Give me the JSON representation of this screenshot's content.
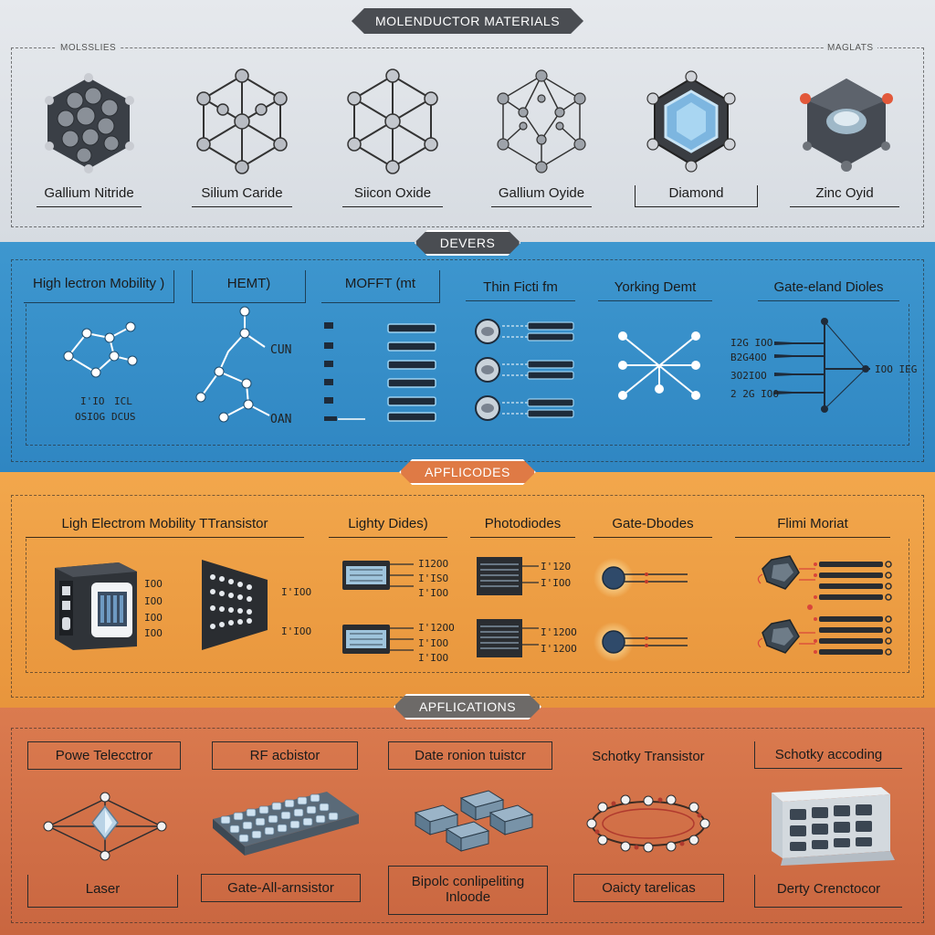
{
  "sections": {
    "materials": "MOLENDUCTOR MATERIALS",
    "devices": "DEVERS",
    "apps1": "APFLICODES",
    "apps2": "APFLICATIONS"
  },
  "materials": {
    "corner_left": "MOLSSLIES",
    "corner_right": "MAGLATS",
    "items": [
      "Gallium Nitride",
      "Silium Caride",
      "Siicon Oxide",
      "Gallium Oyide",
      "Diamond",
      "Zinc Oyid"
    ]
  },
  "devices": {
    "titles": [
      "High lectron Mobility )",
      "HEMT)",
      "MOFFT (mt",
      "Thin Ficti fm",
      "Yorking Demt",
      "Gate-eland Dioles"
    ],
    "hemt_labels": [
      "CUN",
      "OAN"
    ],
    "hemt_left_labels": [
      "I'IO",
      "ICL",
      "OSIOG",
      "DCUS"
    ],
    "diode_labels": [
      "I2G IOO",
      "B2G4OO",
      "3O2IOO",
      "2 2G IOO"
    ],
    "diode_right": "IOO IEG"
  },
  "apps1": {
    "titles": [
      "Ligh Electrom Mobility TTransistor",
      "Lighty Dides)",
      "Photodiodes",
      "Gate-Dbodes",
      "Flimi Moriat"
    ],
    "chip_labels": [
      "IOO",
      "IOO",
      "IOO",
      "IOO"
    ],
    "board_labels": [
      "I'IOO",
      "I'IOO"
    ],
    "diode_labels": [
      "I12OO",
      "I'ISO",
      "I'IOO",
      "I'12OO",
      "I'IOO",
      "I'IOO"
    ],
    "photo_labels": [
      "I'12O",
      "I'IOO",
      "I'12OO",
      "I'12OO"
    ]
  },
  "apps2": {
    "top_labels": [
      "Powe Telecctror",
      "RF acbistor",
      "Date ronion tuistcr",
      "Schotky Transistor",
      "Schotky accoding"
    ],
    "bottom_labels": [
      "Laser",
      "Gate-All-arnsistor",
      "Bipolc conlipeliting",
      "Oaicty tarelicas",
      "Derty Crenctocor"
    ],
    "bottom_sub": "Inloode"
  },
  "colors": {
    "materials_bg": "#e0e4e9",
    "devices_bg": "#3590c9",
    "apps1_bg": "#eea046",
    "apps2_bg": "#d27148"
  }
}
